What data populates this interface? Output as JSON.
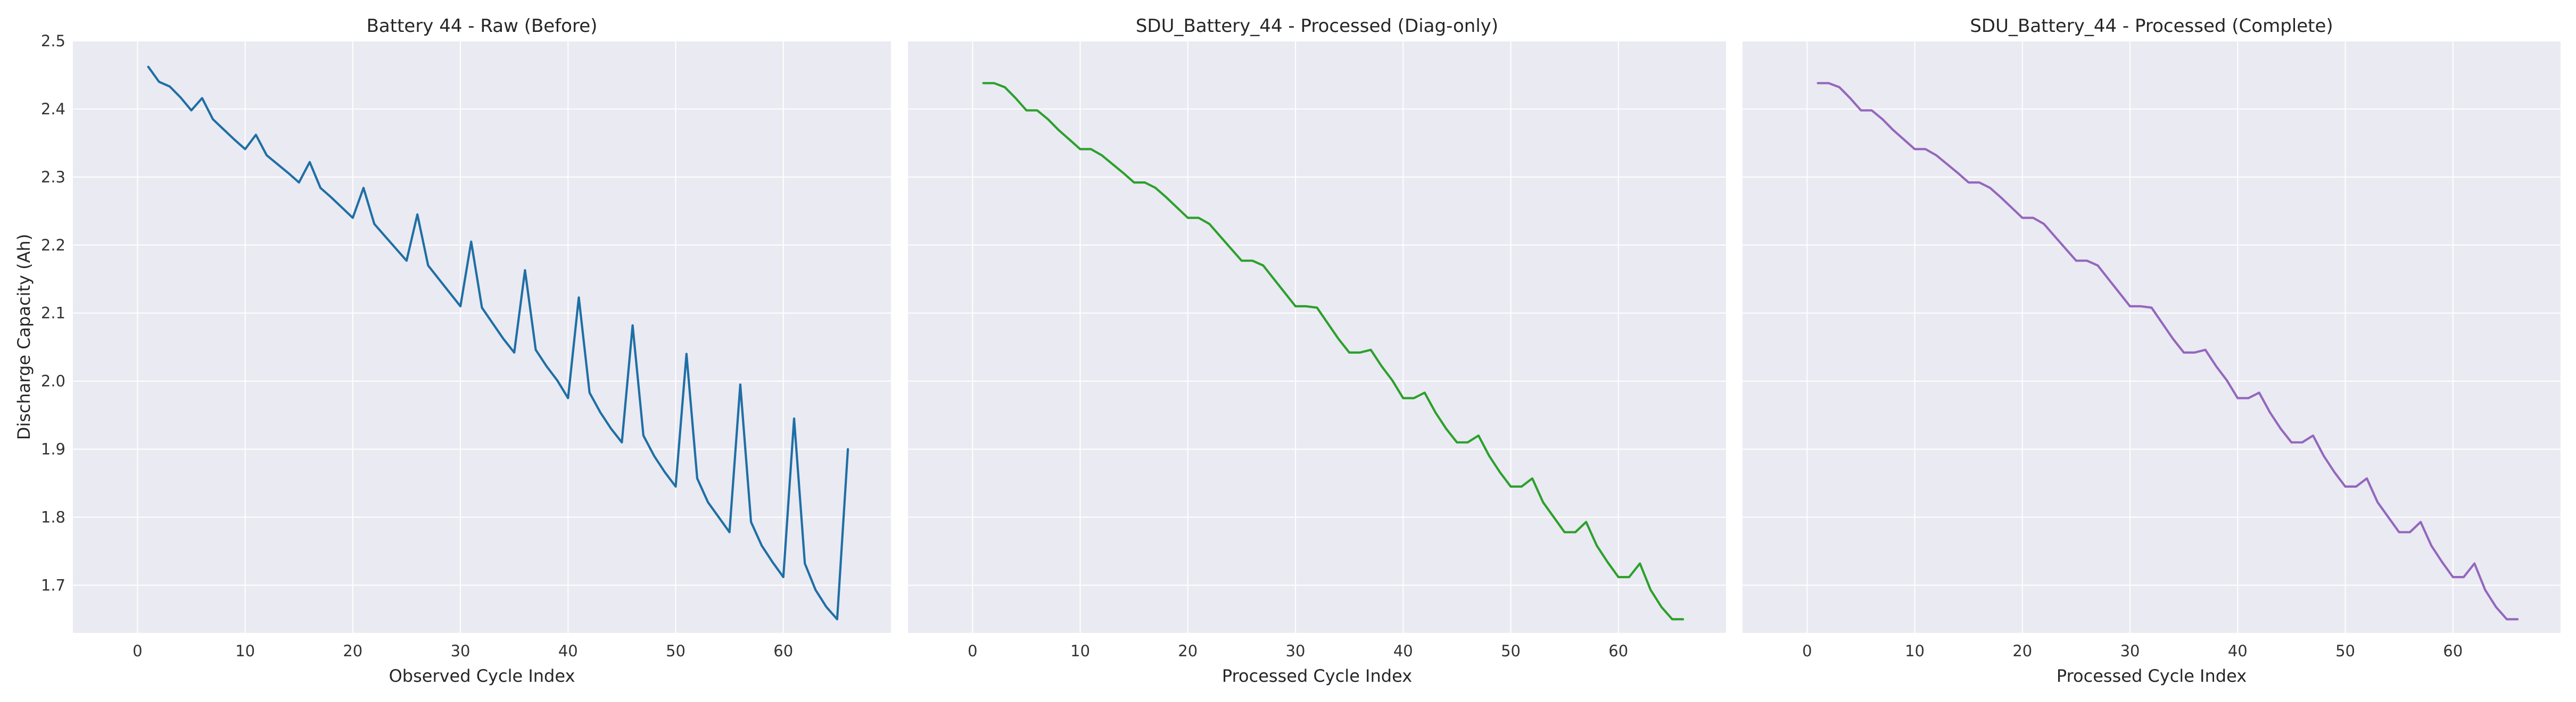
{
  "chart_data": [
    {
      "type": "line",
      "title": "Battery 44 - Raw (Before)",
      "xlabel": "Observed Cycle Index",
      "ylabel": "Discharge Capacity (Ah)",
      "xlim": [
        -6,
        70
      ],
      "ylim": [
        1.63,
        2.5
      ],
      "xticks": [
        0,
        10,
        20,
        30,
        40,
        50,
        60
      ],
      "yticks": [
        1.7,
        1.8,
        1.9,
        2.0,
        2.1,
        2.2,
        2.3,
        2.4,
        2.5
      ],
      "grid": true,
      "color": "#1f6fa5",
      "series": [
        {
          "x": [
            1,
            2,
            3,
            4,
            5,
            6,
            7,
            8,
            9,
            10,
            11,
            12,
            13,
            14,
            15,
            16,
            17,
            18,
            19,
            20,
            21,
            22,
            23,
            24,
            25,
            26,
            27,
            28,
            29,
            30,
            31,
            32,
            33,
            34,
            35,
            36,
            37,
            38,
            39,
            40,
            41,
            42,
            43,
            44,
            45,
            46,
            47,
            48,
            49,
            50,
            51,
            52,
            53,
            54,
            55,
            56,
            57,
            58,
            59,
            60,
            61,
            62,
            63,
            64,
            65,
            66
          ],
          "values": [
            2.462,
            2.44,
            2.433,
            2.417,
            2.398,
            2.416,
            2.385,
            2.37,
            2.355,
            2.341,
            2.362,
            2.332,
            2.319,
            2.306,
            2.292,
            2.322,
            2.284,
            2.27,
            2.255,
            2.24,
            2.284,
            2.231,
            2.213,
            2.195,
            2.177,
            2.245,
            2.17,
            2.15,
            2.13,
            2.11,
            2.205,
            2.108,
            2.085,
            2.062,
            2.042,
            2.163,
            2.046,
            2.022,
            2.001,
            1.975,
            2.123,
            1.983,
            1.954,
            1.93,
            1.91,
            2.082,
            1.92,
            1.89,
            1.866,
            1.845,
            2.04,
            1.857,
            1.822,
            1.8,
            1.778,
            1.995,
            1.793,
            1.758,
            1.734,
            1.712,
            1.945,
            1.732,
            1.693,
            1.668,
            1.65,
            1.9
          ]
        }
      ]
    },
    {
      "type": "line",
      "title": "SDU_Battery_44 - Processed (Diag-only)",
      "xlabel": "Processed Cycle Index",
      "ylabel": "",
      "xlim": [
        -6,
        70
      ],
      "ylim": [
        1.63,
        2.5
      ],
      "xticks": [
        0,
        10,
        20,
        30,
        40,
        50,
        60
      ],
      "grid": true,
      "color": "#2ca02c",
      "series": [
        {
          "x": [
            1,
            2,
            3,
            4,
            5,
            6,
            7,
            8,
            9,
            10,
            11,
            12,
            13,
            14,
            15,
            16,
            17,
            18,
            19,
            20,
            21,
            22,
            23,
            24,
            25,
            26,
            27,
            28,
            29,
            30,
            31,
            32,
            33,
            34,
            35,
            36,
            37,
            38,
            39,
            40,
            41,
            42,
            43,
            44,
            45,
            46,
            47,
            48,
            49,
            50,
            51,
            52,
            53,
            54,
            55,
            56,
            57,
            58,
            59,
            60,
            61,
            62,
            63,
            64,
            65,
            66
          ],
          "values": [
            2.438,
            2.438,
            2.432,
            2.416,
            2.398,
            2.398,
            2.385,
            2.369,
            2.355,
            2.341,
            2.341,
            2.332,
            2.319,
            2.306,
            2.292,
            2.292,
            2.284,
            2.27,
            2.255,
            2.24,
            2.24,
            2.231,
            2.213,
            2.195,
            2.177,
            2.177,
            2.17,
            2.15,
            2.13,
            2.11,
            2.11,
            2.108,
            2.085,
            2.062,
            2.042,
            2.042,
            2.046,
            2.022,
            2.001,
            1.975,
            1.975,
            1.983,
            1.954,
            1.93,
            1.91,
            1.91,
            1.92,
            1.89,
            1.866,
            1.845,
            1.845,
            1.857,
            1.822,
            1.8,
            1.778,
            1.778,
            1.793,
            1.758,
            1.734,
            1.712,
            1.712,
            1.732,
            1.693,
            1.668,
            1.65,
            1.65
          ]
        }
      ]
    },
    {
      "type": "line",
      "title": "SDU_Battery_44 - Processed (Complete)",
      "xlabel": "Processed Cycle Index",
      "ylabel": "",
      "xlim": [
        -6,
        70
      ],
      "ylim": [
        1.63,
        2.5
      ],
      "xticks": [
        0,
        10,
        20,
        30,
        40,
        50,
        60
      ],
      "grid": true,
      "color": "#9467bd",
      "series": [
        {
          "x": [
            1,
            2,
            3,
            4,
            5,
            6,
            7,
            8,
            9,
            10,
            11,
            12,
            13,
            14,
            15,
            16,
            17,
            18,
            19,
            20,
            21,
            22,
            23,
            24,
            25,
            26,
            27,
            28,
            29,
            30,
            31,
            32,
            33,
            34,
            35,
            36,
            37,
            38,
            39,
            40,
            41,
            42,
            43,
            44,
            45,
            46,
            47,
            48,
            49,
            50,
            51,
            52,
            53,
            54,
            55,
            56,
            57,
            58,
            59,
            60,
            61,
            62,
            63,
            64,
            65,
            66
          ],
          "values": [
            2.438,
            2.438,
            2.432,
            2.416,
            2.398,
            2.398,
            2.385,
            2.369,
            2.355,
            2.341,
            2.341,
            2.332,
            2.319,
            2.306,
            2.292,
            2.292,
            2.284,
            2.27,
            2.255,
            2.24,
            2.24,
            2.231,
            2.213,
            2.195,
            2.177,
            2.177,
            2.17,
            2.15,
            2.13,
            2.11,
            2.11,
            2.108,
            2.085,
            2.062,
            2.042,
            2.042,
            2.046,
            2.022,
            2.001,
            1.975,
            1.975,
            1.983,
            1.954,
            1.93,
            1.91,
            1.91,
            1.92,
            1.89,
            1.866,
            1.845,
            1.845,
            1.857,
            1.822,
            1.8,
            1.778,
            1.778,
            1.793,
            1.758,
            1.734,
            1.712,
            1.712,
            1.732,
            1.693,
            1.668,
            1.65,
            1.65
          ]
        }
      ]
    }
  ]
}
